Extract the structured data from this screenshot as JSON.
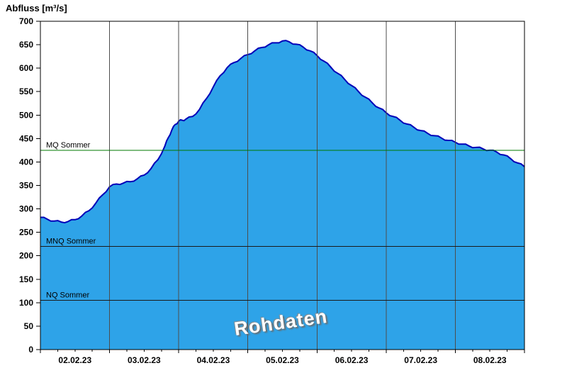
{
  "title": "Abfluss [m³/s]",
  "watermark": "Rohdaten",
  "chart_data": {
    "type": "area",
    "title": "Abfluss [m³/s]",
    "ylabel": "Abfluss [m³/s]",
    "ylim": [
      0,
      700
    ],
    "ytick_step": 50,
    "x_range_days": 7,
    "x_tick_labels": [
      "02.02.23",
      "03.02.23",
      "04.02.23",
      "05.02.23",
      "06.02.23",
      "07.02.23",
      "08.02.23"
    ],
    "grid": "vertical-day-lines",
    "legend": "none",
    "colors": {
      "fill": "#2ea3e8",
      "line": "#0000b8",
      "grid": "#4d4d4d",
      "axis": "#000000",
      "mq_line": "#007800",
      "nq_mnq_line": "#1a1a1a"
    },
    "reference_lines": [
      {
        "label": "MQ Sommer",
        "value": 425,
        "color_key": "mq_line"
      },
      {
        "label": "MNQ Sommer",
        "value": 220,
        "color_key": "nq_mnq_line"
      },
      {
        "label": "NQ Sommer",
        "value": 105,
        "color_key": "nq_mnq_line"
      }
    ],
    "series": [
      {
        "name": "Abfluss Rohdaten",
        "points": [
          [
            0.0,
            282
          ],
          [
            0.1,
            278
          ],
          [
            0.2,
            274
          ],
          [
            0.3,
            272
          ],
          [
            0.4,
            273
          ],
          [
            0.5,
            277
          ],
          [
            0.6,
            285
          ],
          [
            0.7,
            296
          ],
          [
            0.8,
            312
          ],
          [
            0.9,
            330
          ],
          [
            1.0,
            347
          ],
          [
            1.1,
            353
          ],
          [
            1.2,
            355
          ],
          [
            1.3,
            358
          ],
          [
            1.4,
            364
          ],
          [
            1.5,
            372
          ],
          [
            1.6,
            386
          ],
          [
            1.7,
            405
          ],
          [
            1.8,
            434
          ],
          [
            1.85,
            452
          ],
          [
            1.9,
            468
          ],
          [
            1.95,
            480
          ],
          [
            2.0,
            487
          ],
          [
            2.05,
            489
          ],
          [
            2.1,
            491
          ],
          [
            2.2,
            497
          ],
          [
            2.3,
            512
          ],
          [
            2.4,
            535
          ],
          [
            2.5,
            560
          ],
          [
            2.6,
            584
          ],
          [
            2.7,
            601
          ],
          [
            2.8,
            612
          ],
          [
            2.9,
            621
          ],
          [
            3.0,
            629
          ],
          [
            3.1,
            637
          ],
          [
            3.2,
            644
          ],
          [
            3.3,
            650
          ],
          [
            3.4,
            654
          ],
          [
            3.5,
            658
          ],
          [
            3.6,
            656
          ],
          [
            3.7,
            651
          ],
          [
            3.8,
            645
          ],
          [
            3.9,
            637
          ],
          [
            4.0,
            627
          ],
          [
            4.1,
            615
          ],
          [
            4.2,
            602
          ],
          [
            4.3,
            589
          ],
          [
            4.4,
            576
          ],
          [
            4.5,
            563
          ],
          [
            4.6,
            550
          ],
          [
            4.7,
            538
          ],
          [
            4.8,
            526
          ],
          [
            4.9,
            515
          ],
          [
            5.0,
            505
          ],
          [
            5.1,
            497
          ],
          [
            5.2,
            489
          ],
          [
            5.3,
            481
          ],
          [
            5.4,
            474
          ],
          [
            5.5,
            467
          ],
          [
            5.6,
            461
          ],
          [
            5.7,
            456
          ],
          [
            5.8,
            451
          ],
          [
            5.9,
            446
          ],
          [
            6.0,
            442
          ],
          [
            6.1,
            438
          ],
          [
            6.2,
            434
          ],
          [
            6.3,
            431
          ],
          [
            6.4,
            428
          ],
          [
            6.5,
            425
          ],
          [
            6.6,
            421
          ],
          [
            6.7,
            415
          ],
          [
            6.8,
            407
          ],
          [
            6.9,
            398
          ],
          [
            7.0,
            390
          ]
        ]
      }
    ]
  }
}
